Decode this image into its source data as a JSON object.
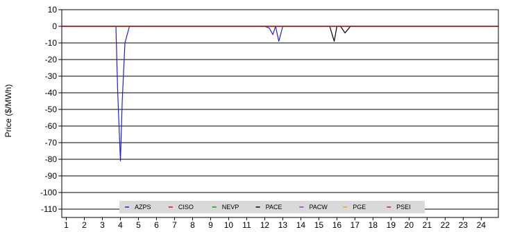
{
  "chart_data": {
    "type": "line",
    "ylabel": "Price ($/MWh)",
    "xlabel": "",
    "ylim": [
      -115,
      10
    ],
    "xlim": [
      0.75,
      24.95
    ],
    "y_ticks": [
      10,
      0,
      -10,
      -20,
      -30,
      -40,
      -50,
      -60,
      -70,
      -80,
      -90,
      -100,
      -110
    ],
    "x_ticks": [
      1,
      2,
      3,
      4,
      5,
      6,
      7,
      8,
      9,
      10,
      11,
      12,
      13,
      14,
      15,
      16,
      17,
      18,
      19,
      20,
      21,
      22,
      23,
      24
    ],
    "grid": "horizontal",
    "legend_position": "bottom-inside",
    "series": [
      {
        "name": "AZPS",
        "color": "#1f1fcf",
        "x": [
          0.75,
          3.6,
          3.75,
          3.85,
          4.0,
          4.1,
          4.25,
          4.5,
          12.0,
          12.25,
          12.45,
          12.6,
          12.78,
          13.0,
          24.95
        ],
        "y": [
          0,
          0,
          0,
          -40,
          -81,
          -45,
          -10,
          0,
          0,
          -1,
          -5,
          0,
          -9,
          0,
          0
        ]
      },
      {
        "name": "CISO",
        "color": "#ff0000",
        "x": [
          0.75,
          24.95
        ],
        "y": [
          0,
          0
        ]
      },
      {
        "name": "NEVP",
        "color": "#00aa00",
        "x": [
          0.75,
          24.95
        ],
        "y": [
          0,
          0
        ]
      },
      {
        "name": "PACE",
        "color": "#000000",
        "x": [
          0.75,
          15.5,
          15.6,
          15.85,
          16.0,
          16.2,
          16.45,
          16.75,
          24.95
        ],
        "y": [
          0,
          0,
          0,
          -9,
          0,
          0,
          -4,
          0,
          0
        ]
      },
      {
        "name": "PACW",
        "color": "#9932cc",
        "x": [
          0.75,
          24.95
        ],
        "y": [
          0,
          0
        ]
      },
      {
        "name": "PGE",
        "color": "#ffa500",
        "x": [
          0.75,
          24.95
        ],
        "y": [
          0,
          0
        ]
      },
      {
        "name": "PSEI",
        "color": "#cc2222",
        "x": [
          0.75,
          24.95
        ],
        "y": [
          0,
          0
        ]
      }
    ]
  }
}
